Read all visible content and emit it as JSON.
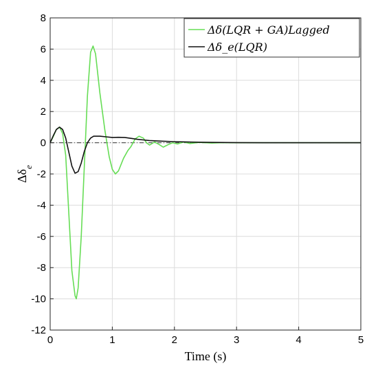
{
  "chart_data": {
    "type": "line",
    "title": "",
    "xlabel": "Time (s)",
    "ylabel": "Δδ",
    "ylabel_subscript": "e",
    "xlim": [
      0,
      5
    ],
    "ylim": [
      -12,
      8
    ],
    "x_ticks": [
      "0",
      "1",
      "2",
      "3",
      "4",
      "5"
    ],
    "y_ticks": [
      "-12",
      "-10",
      "-8",
      "-6",
      "-4",
      "-2",
      "0",
      "2",
      "4",
      "6",
      "8"
    ],
    "grid": true,
    "legend_position": "top-right",
    "series": [
      {
        "name": "Δδ(LQR + GA)Lagged",
        "color": "#66dd55",
        "points": [
          [
            0,
            0
          ],
          [
            0.05,
            0.4
          ],
          [
            0.1,
            0.85
          ],
          [
            0.15,
            1.0
          ],
          [
            0.2,
            0.6
          ],
          [
            0.25,
            -0.8
          ],
          [
            0.3,
            -4.5
          ],
          [
            0.35,
            -8.2
          ],
          [
            0.4,
            -9.8
          ],
          [
            0.42,
            -10.0
          ],
          [
            0.45,
            -9.3
          ],
          [
            0.5,
            -6.0
          ],
          [
            0.55,
            -1.5
          ],
          [
            0.6,
            3.0
          ],
          [
            0.65,
            5.8
          ],
          [
            0.69,
            6.2
          ],
          [
            0.73,
            5.7
          ],
          [
            0.8,
            3.2
          ],
          [
            0.88,
            0.8
          ],
          [
            0.95,
            -0.9
          ],
          [
            1.0,
            -1.7
          ],
          [
            1.05,
            -2.0
          ],
          [
            1.1,
            -1.8
          ],
          [
            1.18,
            -1.0
          ],
          [
            1.25,
            -0.5
          ],
          [
            1.3,
            -0.25
          ],
          [
            1.37,
            0.25
          ],
          [
            1.43,
            0.42
          ],
          [
            1.5,
            0.3
          ],
          [
            1.55,
            0.0
          ],
          [
            1.6,
            -0.15
          ],
          [
            1.68,
            0.05
          ],
          [
            1.75,
            -0.1
          ],
          [
            1.82,
            -0.28
          ],
          [
            1.9,
            -0.12
          ],
          [
            1.97,
            0.0
          ],
          [
            2.05,
            -0.08
          ],
          [
            2.15,
            0.05
          ],
          [
            2.25,
            -0.05
          ],
          [
            2.4,
            0.02
          ],
          [
            2.6,
            -0.02
          ],
          [
            2.8,
            0.01
          ],
          [
            3.0,
            0.0
          ],
          [
            3.5,
            0.0
          ],
          [
            4.0,
            0.0
          ],
          [
            4.5,
            0.0
          ],
          [
            5.0,
            0.0
          ]
        ]
      },
      {
        "name": "Δδ_e(LQR)",
        "color": "#111111",
        "points": [
          [
            0,
            0
          ],
          [
            0.05,
            0.45
          ],
          [
            0.1,
            0.85
          ],
          [
            0.15,
            1.0
          ],
          [
            0.2,
            0.85
          ],
          [
            0.25,
            0.3
          ],
          [
            0.3,
            -0.6
          ],
          [
            0.35,
            -1.5
          ],
          [
            0.4,
            -1.95
          ],
          [
            0.45,
            -1.85
          ],
          [
            0.5,
            -1.3
          ],
          [
            0.55,
            -0.55
          ],
          [
            0.6,
            0.0
          ],
          [
            0.65,
            0.3
          ],
          [
            0.7,
            0.42
          ],
          [
            0.8,
            0.42
          ],
          [
            0.9,
            0.38
          ],
          [
            1.0,
            0.34
          ],
          [
            1.1,
            0.35
          ],
          [
            1.2,
            0.34
          ],
          [
            1.3,
            0.28
          ],
          [
            1.4,
            0.22
          ],
          [
            1.5,
            0.18
          ],
          [
            1.6,
            0.14
          ],
          [
            1.8,
            0.1
          ],
          [
            2.0,
            0.07
          ],
          [
            2.3,
            0.04
          ],
          [
            2.6,
            0.02
          ],
          [
            3.0,
            0.01
          ],
          [
            3.5,
            0.0
          ],
          [
            4.0,
            0.0
          ],
          [
            5.0,
            0.0
          ]
        ]
      }
    ],
    "reference_line": {
      "y": 0,
      "style": "dash-dot",
      "color": "#333333"
    }
  }
}
